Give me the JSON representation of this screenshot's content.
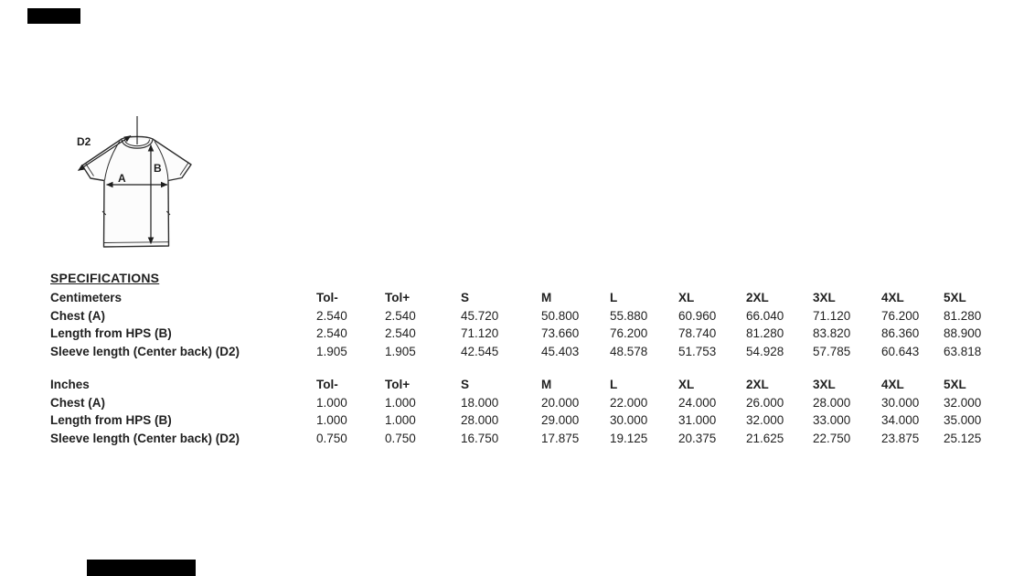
{
  "page": {
    "background": "#ffffff",
    "text_color": "#1f1f1f",
    "line_color": "#2e2e2e",
    "redaction_color": "#000000"
  },
  "diagram": {
    "labels": {
      "d2": "D2",
      "b": "B",
      "a": "A"
    }
  },
  "specifications": {
    "title": "SPECIFICATIONS",
    "size_headers": [
      "Tol-",
      "Tol+",
      "S",
      "M",
      "L",
      "XL",
      "2XL",
      "3XL",
      "4XL",
      "5XL"
    ],
    "tables": [
      {
        "unit_label": "Centimeters",
        "rows": [
          {
            "label": "Chest (A)",
            "values": [
              "2.540",
              "2.540",
              "45.720",
              "50.800",
              "55.880",
              "60.960",
              "66.040",
              "71.120",
              "76.200",
              "81.280"
            ]
          },
          {
            "label": "Length from HPS (B)",
            "values": [
              "2.540",
              "2.540",
              "71.120",
              "73.660",
              "76.200",
              "78.740",
              "81.280",
              "83.820",
              "86.360",
              "88.900"
            ]
          },
          {
            "label": "Sleeve length (Center back) (D2)",
            "values": [
              "1.905",
              "1.905",
              "42.545",
              "45.403",
              "48.578",
              "51.753",
              "54.928",
              "57.785",
              "60.643",
              "63.818"
            ]
          }
        ]
      },
      {
        "unit_label": "Inches",
        "rows": [
          {
            "label": "Chest (A)",
            "values": [
              "1.000",
              "1.000",
              "18.000",
              "20.000",
              "22.000",
              "24.000",
              "26.000",
              "28.000",
              "30.000",
              "32.000"
            ]
          },
          {
            "label": "Length from HPS (B)",
            "values": [
              "1.000",
              "1.000",
              "28.000",
              "29.000",
              "30.000",
              "31.000",
              "32.000",
              "33.000",
              "34.000",
              "35.000"
            ]
          },
          {
            "label": "Sleeve length (Center back) (D2)",
            "values": [
              "0.750",
              "0.750",
              "16.750",
              "17.875",
              "19.125",
              "20.375",
              "21.625",
              "22.750",
              "23.875",
              "25.125"
            ]
          }
        ]
      }
    ]
  }
}
